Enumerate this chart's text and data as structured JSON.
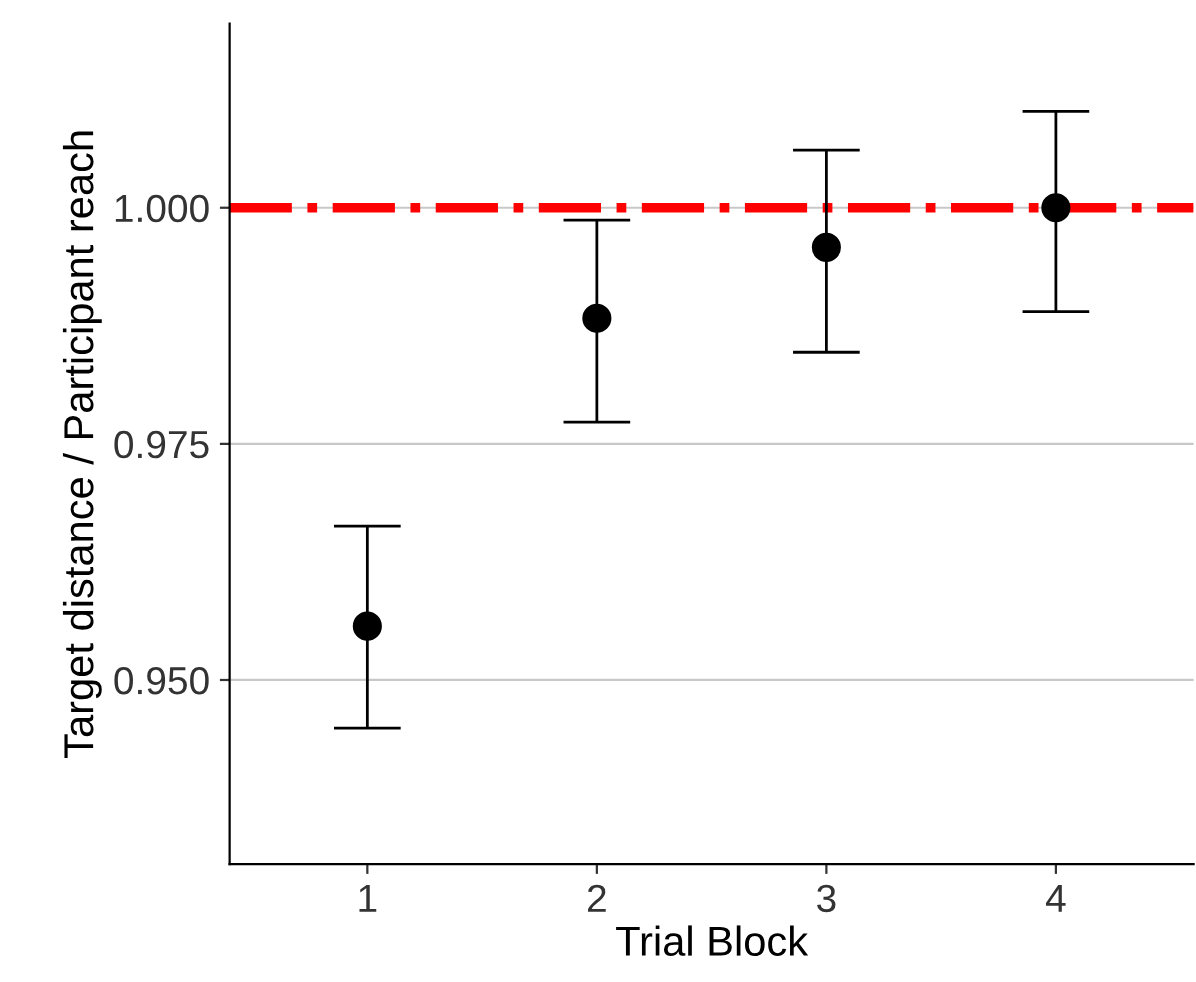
{
  "chart_data": {
    "type": "scatter",
    "xlabel": "Trial Block",
    "ylabel": "Target distance / Participant reach",
    "categories": [
      "1",
      "2",
      "3",
      "4"
    ],
    "values": [
      0.9557,
      0.9883,
      0.9958,
      1.0
    ],
    "errors": [
      [
        0.9449,
        0.9663
      ],
      [
        0.9773,
        0.9987
      ],
      [
        0.9847,
        1.0061
      ],
      [
        0.989,
        1.0102
      ]
    ],
    "color": "#000000",
    "marker": "circle",
    "ylim": [
      0.9305,
      1.0195
    ],
    "yticks": [
      {
        "value": 0.95,
        "label": "0.950"
      },
      {
        "value": 0.975,
        "label": "0.975"
      },
      {
        "value": 1.0,
        "label": "1.000"
      }
    ],
    "grid": "y",
    "ref_lines": [
      {
        "axis": "y",
        "value": 1.0,
        "color": "#ff0000",
        "line_style": "dashdot"
      }
    ]
  }
}
